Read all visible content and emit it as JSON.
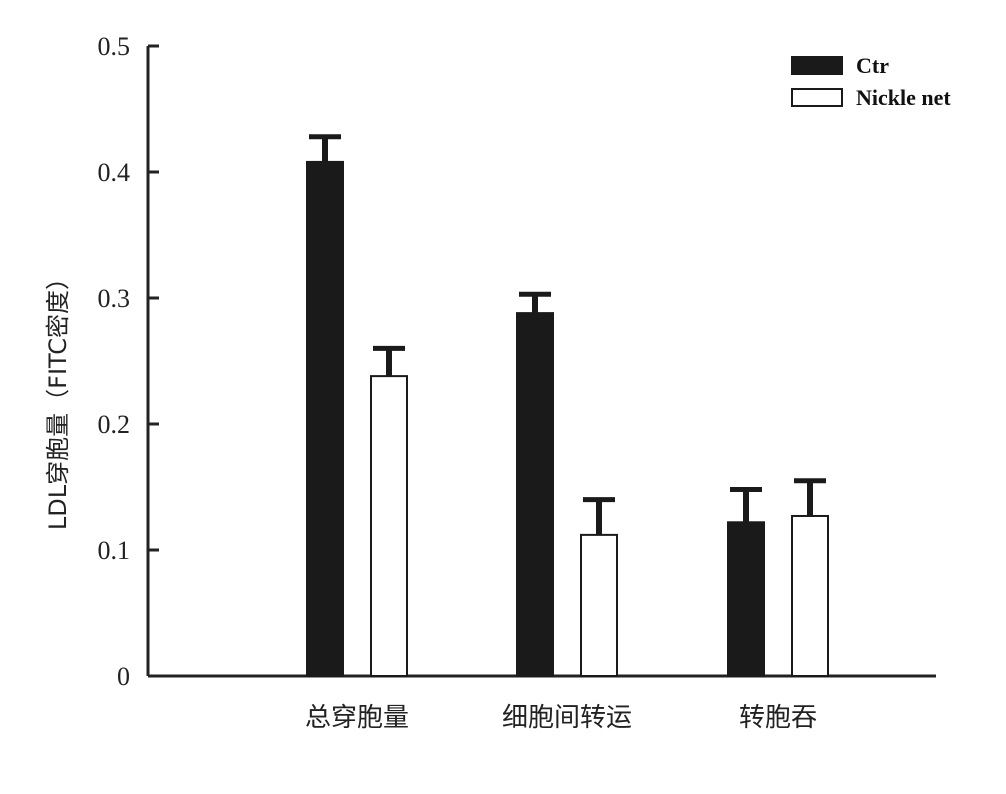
{
  "chart_data": {
    "type": "bar",
    "categories": [
      "总穿胞量",
      "细胞间转运",
      "转胞吞"
    ],
    "series": [
      {
        "name": "Ctr",
        "values": [
          0.408,
          0.288,
          0.122
        ],
        "errors": [
          0.02,
          0.015,
          0.026
        ],
        "color": "#1a1a1a"
      },
      {
        "name": "Nickle net",
        "values": [
          0.238,
          0.112,
          0.127
        ],
        "errors": [
          0.022,
          0.028,
          0.028
        ],
        "color": "#ffffff"
      }
    ],
    "title": "",
    "xlabel": "",
    "ylabel": "LDL穿胞量（FITC密度）",
    "ylim": [
      0,
      0.5
    ],
    "yticks": [
      0,
      0.1,
      0.2,
      0.3,
      0.4,
      0.5
    ],
    "ytick_labels": [
      "0",
      "0.1",
      "0.2",
      "0.3",
      "0.4",
      "0.5"
    ],
    "grid": false,
    "legend_position": "top-right"
  }
}
